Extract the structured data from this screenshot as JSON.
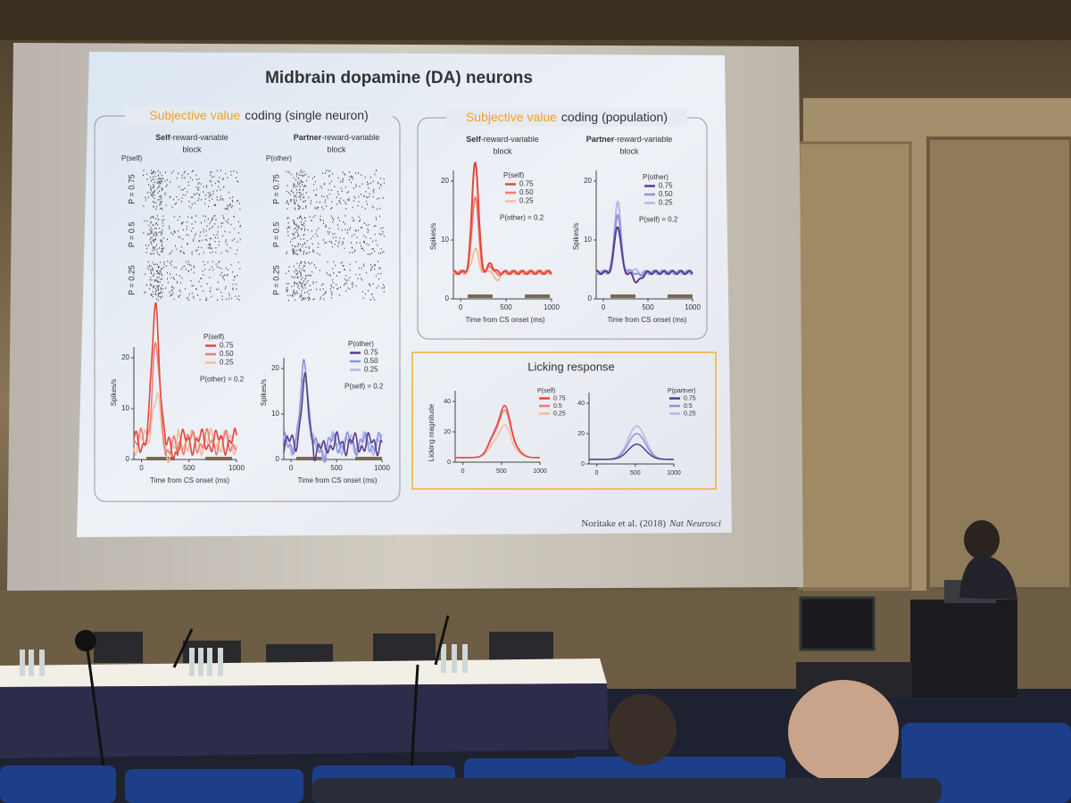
{
  "slide": {
    "title": "Midbrain dopamine (DA) neurons",
    "single_neuron": {
      "heading": [
        "Subjective value",
        "coding (single neuron)"
      ],
      "blocks": [
        {
          "title": [
            "Self",
            "-reward-variable",
            "block"
          ],
          "prob_label": "P(self)",
          "rows": [
            "P = 0.75",
            "P = 0.5",
            "P = 0.25"
          ],
          "plot": {
            "yticks": [
              "20",
              "10",
              "0"
            ],
            "xticks": [
              "0",
              "500",
              "1000"
            ],
            "ylabel": "Spikes/s",
            "xlabel": "Time from CS onset (ms)",
            "legend_title": "P(self)",
            "legend": [
              "0.75",
              "0.50",
              "0.25"
            ],
            "note": "P(other) = 0.2"
          }
        },
        {
          "title": [
            "Partner",
            "-reward-variable",
            "block"
          ],
          "prob_label": "P(other)",
          "rows": [
            "P = 0.75",
            "P = 0.5",
            "P = 0.25"
          ],
          "plot": {
            "yticks": [
              "20",
              "10",
              "0"
            ],
            "xticks": [
              "0",
              "500",
              "1000"
            ],
            "ylabel": "Spikes/s",
            "xlabel": "Time from CS onset (ms)",
            "legend_title": "P(other)",
            "legend": [
              "0.75",
              "0.50",
              "0.25"
            ],
            "note": "P(self) = 0.2"
          }
        }
      ]
    },
    "population": {
      "heading": [
        "Subjective value",
        "coding (population)"
      ],
      "blocks": [
        {
          "title": [
            "Self",
            "-reward-variable",
            "block"
          ],
          "plot": {
            "yticks": [
              "20",
              "10",
              "0"
            ],
            "xticks": [
              "0",
              "500",
              "1000"
            ],
            "ylabel": "Spikes/s",
            "xlabel": "Time from CS onset (ms)",
            "legend_title": "P(self)",
            "legend": [
              "0.75",
              "0.50",
              "0.25"
            ],
            "note": "P(other) = 0.2"
          }
        },
        {
          "title": [
            "Partner",
            "-reward-variable",
            "block"
          ],
          "plot": {
            "yticks": [
              "20",
              "10",
              "0"
            ],
            "xticks": [
              "0",
              "500",
              "1000"
            ],
            "ylabel": "Spikes/s",
            "xlabel": "Time from CS onset (ms)",
            "legend_title": "P(other)",
            "legend": [
              "0.75",
              "0.50",
              "0.25"
            ],
            "note": "P(self) = 0.2"
          }
        }
      ]
    },
    "licking": {
      "title": "Licking response",
      "ylabel": "Licking magnitude",
      "plots": [
        {
          "yticks": [
            "40",
            "20",
            "0"
          ],
          "xticks": [
            "0",
            "500",
            "1000"
          ],
          "legend_title": "P(self)",
          "legend": [
            "0.75",
            "0.5",
            "0.25"
          ]
        },
        {
          "yticks": [
            "40",
            "20",
            "0"
          ],
          "xticks": [
            "0",
            "500",
            "1000"
          ],
          "legend_title": "P(partner)",
          "legend": [
            "0.75",
            "0.5",
            "0.25"
          ]
        }
      ]
    },
    "citation": [
      "Noritake et al. (2018)",
      "Nat Neurosci"
    ]
  }
}
